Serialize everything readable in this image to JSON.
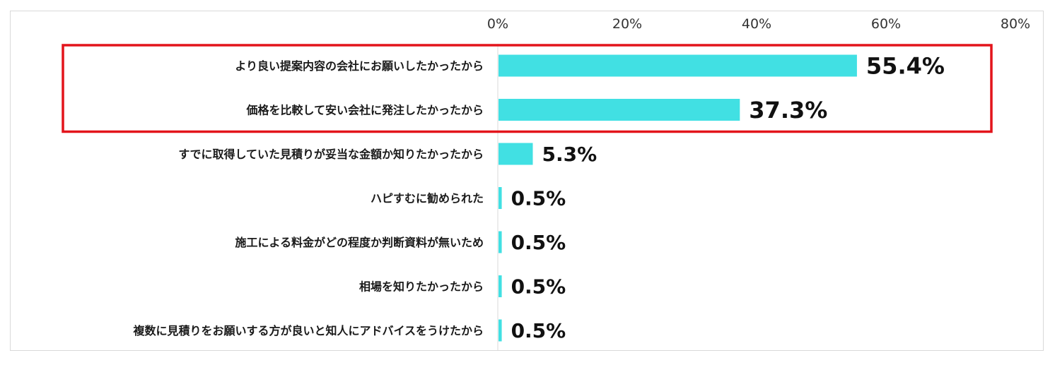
{
  "chart_data": {
    "type": "bar",
    "orientation": "horizontal",
    "categories": [
      "より良い提案内容の会社にお願いしたかったから",
      "価格を比較して安い会社に発注したかったから",
      "すでに取得していた見積りが妥当な金額か知りたかったから",
      "ハピすむに勧められた",
      "施工による料金がどの程度か判断資料が無いため",
      "相場を知りたかったから",
      "複数に見積りをお願いする方が良いと知人にアドバイスをうけたから"
    ],
    "values": [
      55.4,
      37.3,
      5.3,
      0.5,
      0.5,
      0.5,
      0.5
    ],
    "value_labels": [
      "55.4%",
      "37.3%",
      "5.3%",
      "0.5%",
      "0.5%",
      "0.5%",
      "0.5%"
    ],
    "xlim": [
      0,
      80
    ],
    "xticks": [
      "0%",
      "20%",
      "40%",
      "60%",
      "80%"
    ],
    "xtick_values": [
      0,
      20,
      40,
      60,
      80
    ],
    "axis_position": "top",
    "grid": false,
    "highlight_categories": [
      0,
      1
    ],
    "colors": {
      "bar": "#41e0e3",
      "highlight_box": "#e3141b",
      "axis": "#d9d9d9"
    }
  }
}
